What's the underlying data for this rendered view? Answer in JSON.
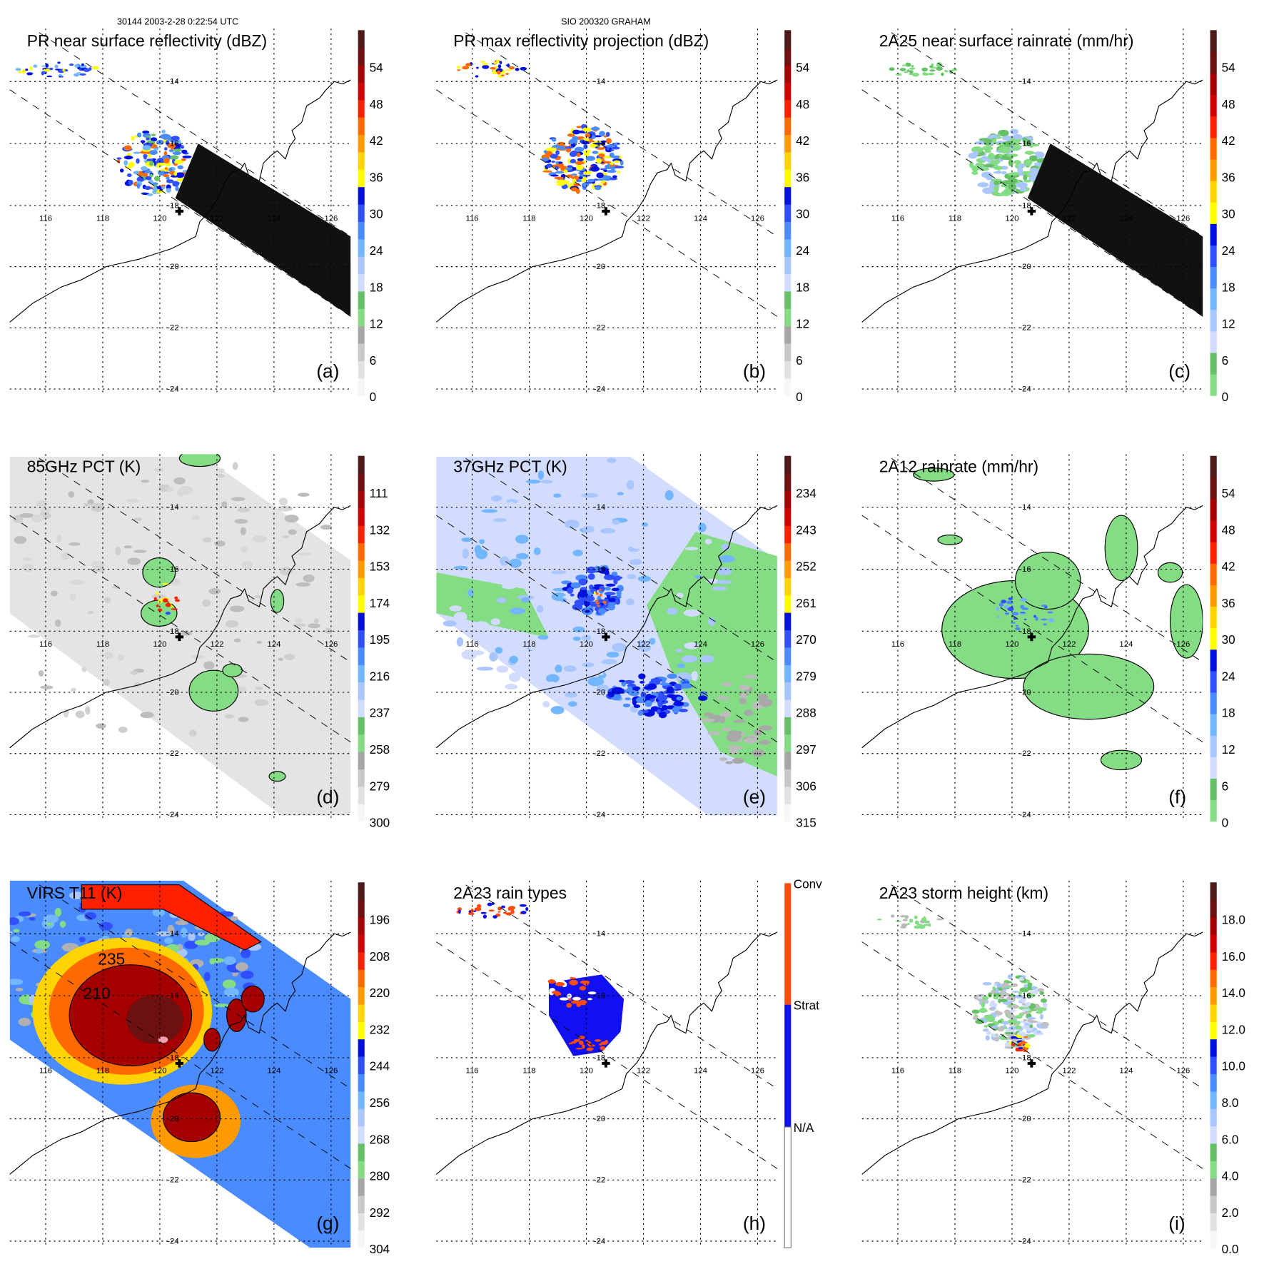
{
  "header": {
    "orbit_time": "30144 2003-2-28 0:22:54 UTC",
    "storm": "SIO 200320 GRAHAM"
  },
  "lon_labels": [
    "116",
    "118",
    "120",
    "122",
    "124",
    "126"
  ],
  "lat_labels": [
    "-14",
    "-16",
    "-18",
    "-20",
    "-22",
    "-24"
  ],
  "contour_labels": [
    "235",
    "210",
    "210",
    "235"
  ],
  "colors": {
    "ramp": [
      "#f6f6f6",
      "#e2e2e2",
      "#c8c8c8",
      "#a6a6a6",
      "#84dc84",
      "#66c066",
      "#d2dcff",
      "#a9c6ff",
      "#72b6ff",
      "#4a8cff",
      "#3050ff",
      "#0010e0",
      "#ffff00",
      "#ffd400",
      "#ff9a00",
      "#ff6a00",
      "#ff2000",
      "#d00000",
      "#a40000",
      "#6c1010",
      "#4e1a1a"
    ],
    "conv": "#ff4a10",
    "strat": "#1010f0",
    "na": "#ffffff"
  },
  "panels": [
    {
      "id": "a",
      "letter": "(a)",
      "title": "PR near surface reflectivity (dBZ)",
      "ramp": "gray",
      "colorbar_labels": [
        "54",
        "48",
        "42",
        "36",
        "30",
        "24",
        "18",
        "12",
        "6",
        "0"
      ]
    },
    {
      "id": "b",
      "letter": "(b)",
      "title": "PR max reflectivity projection (dBZ)",
      "ramp": "gray",
      "colorbar_labels": [
        "54",
        "48",
        "42",
        "36",
        "30",
        "24",
        "18",
        "12",
        "6",
        "0"
      ]
    },
    {
      "id": "c",
      "letter": "(c)",
      "title": "2A25 near surface rainrate (mm/hr)",
      "ramp": "green",
      "colorbar_labels": [
        "54",
        "48",
        "42",
        "36",
        "30",
        "24",
        "18",
        "12",
        "6",
        "0"
      ]
    },
    {
      "id": "d",
      "letter": "(d)",
      "title": "85GHz PCT (K)",
      "ramp": "gray",
      "colorbar_labels": [
        "111",
        "132",
        "153",
        "174",
        "195",
        "216",
        "237",
        "258",
        "279",
        "300"
      ]
    },
    {
      "id": "e",
      "letter": "(e)",
      "title": "37GHz PCT (K)",
      "ramp": "gray",
      "colorbar_labels": [
        "234",
        "243",
        "252",
        "261",
        "270",
        "279",
        "288",
        "297",
        "306",
        "315"
      ]
    },
    {
      "id": "f",
      "letter": "(f)",
      "title": "2A12 rainrate (mm/hr)",
      "ramp": "green",
      "colorbar_labels": [
        "54",
        "48",
        "42",
        "36",
        "30",
        "24",
        "18",
        "12",
        "6",
        "0"
      ]
    },
    {
      "id": "g",
      "letter": "(g)",
      "title": "VIRS T11 (K)",
      "ramp": "gray",
      "colorbar_labels": [
        "196",
        "208",
        "220",
        "232",
        "244",
        "256",
        "268",
        "280",
        "292",
        "304"
      ]
    },
    {
      "id": "h",
      "letter": "(h)",
      "title": "2A23 rain types",
      "ramp": "category",
      "colorbar_labels": [
        "Conv",
        "Strat",
        "N/A"
      ]
    },
    {
      "id": "i",
      "letter": "(i)",
      "title": "2A23 storm height (km)",
      "ramp": "gray",
      "colorbar_labels": [
        "18.0",
        "16.0",
        "14.0",
        "12.0",
        "10.0",
        "8.0",
        "6.0",
        "4.0",
        "2.0",
        "0.0"
      ]
    }
  ]
}
